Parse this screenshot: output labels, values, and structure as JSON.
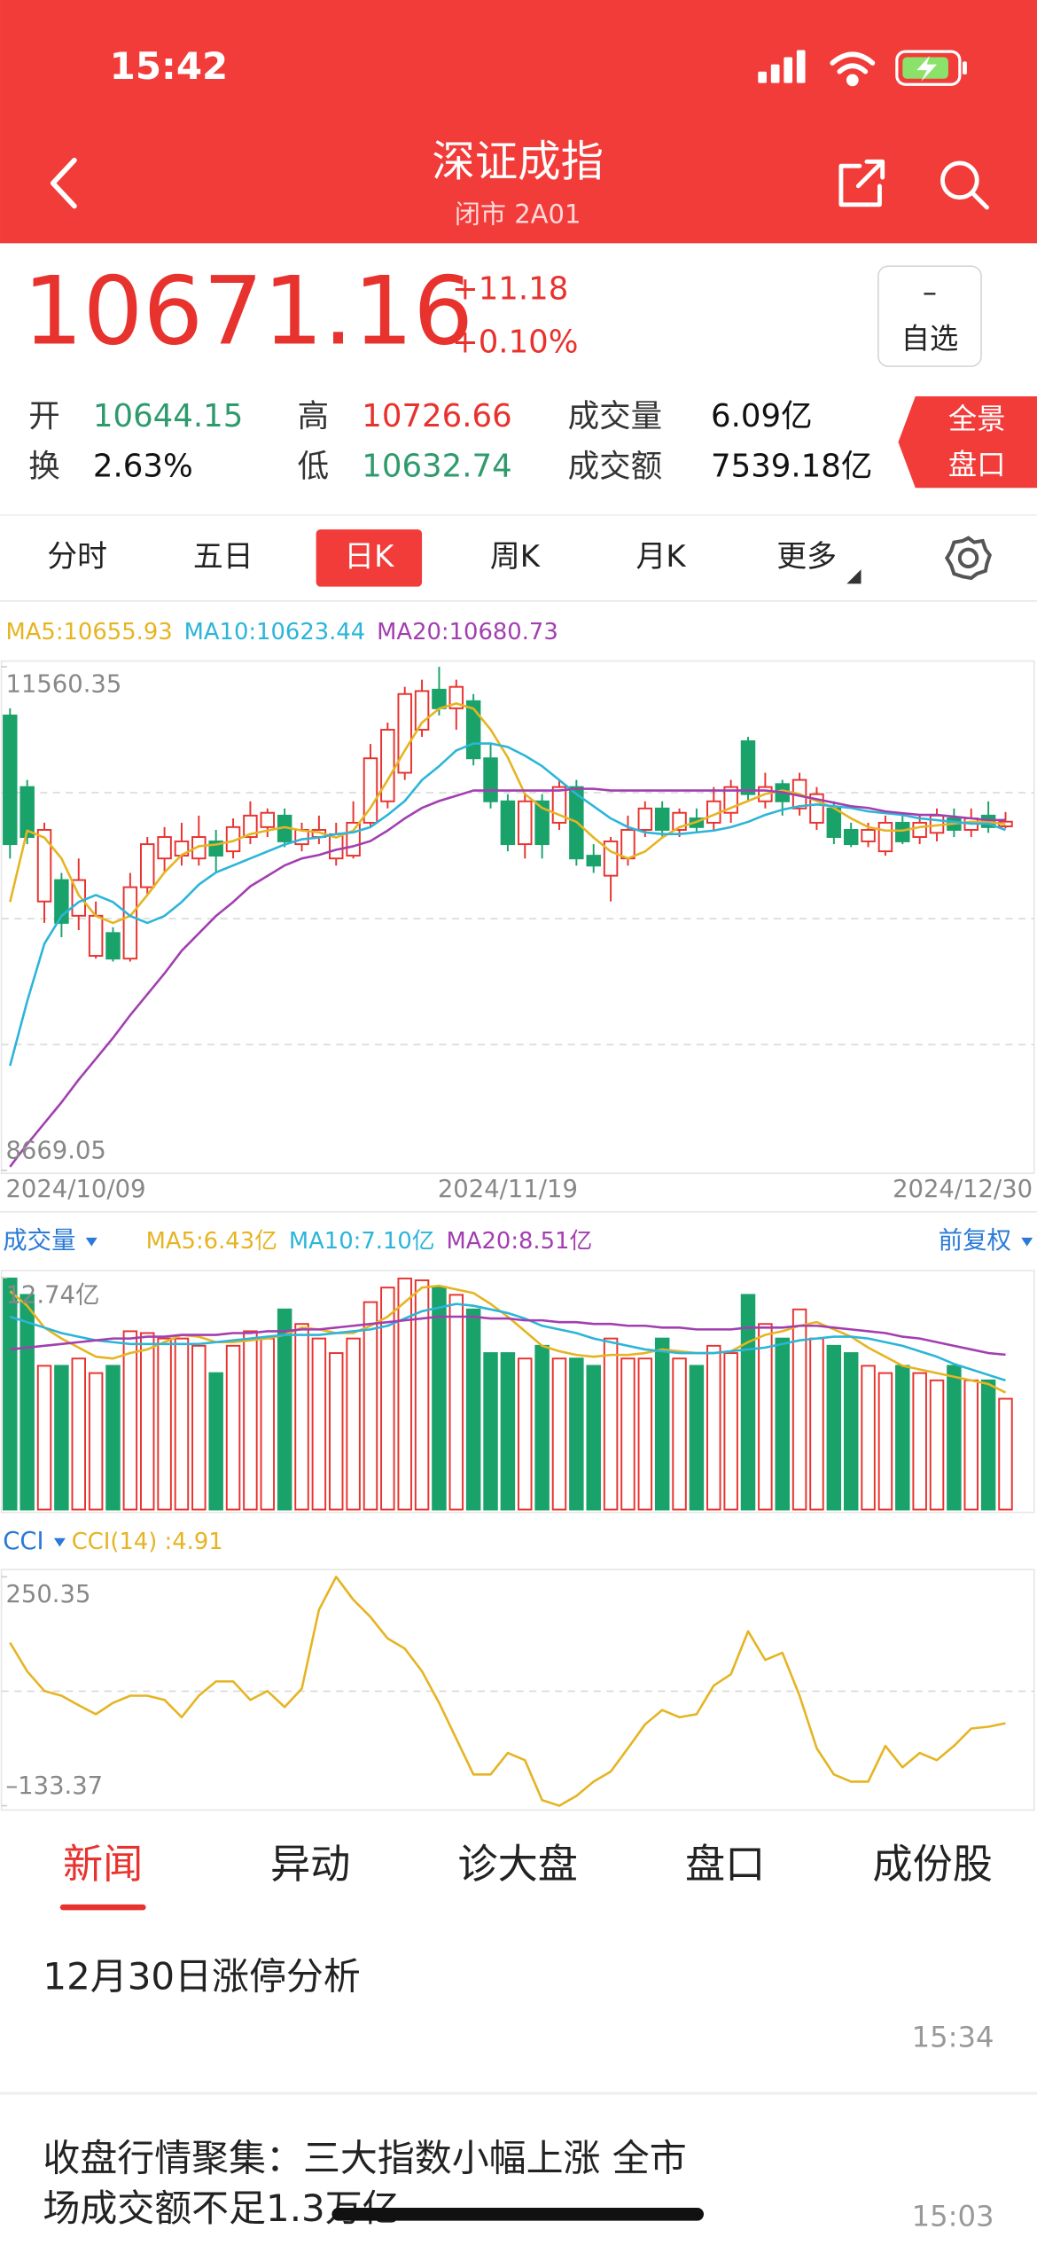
{
  "status_bar": {
    "time": "15:42"
  },
  "header": {
    "title": "深证成指",
    "subtitle": "闭市 2A01"
  },
  "quote": {
    "price": "10671.16",
    "change": "+11.18",
    "change_pct": "+0.10%",
    "watch_icon": "–",
    "watch_button": "自选"
  },
  "stats": [
    {
      "label": "开",
      "value": "10644.15",
      "color": "#2f9b6c"
    },
    {
      "label": "高",
      "value": "10726.66",
      "color": "#e8322e"
    },
    {
      "label": "成交量",
      "value": "6.09亿",
      "color": "#111111"
    },
    {
      "label": "换",
      "value": "2.63%",
      "color": "#111111"
    },
    {
      "label": "低",
      "value": "10632.74",
      "color": "#2f9b6c"
    },
    {
      "label": "成交额",
      "value": "7539.18亿",
      "color": "#111111"
    }
  ],
  "panorama_button": [
    "全景",
    "盘口"
  ],
  "period_tabs": {
    "items": [
      "分时",
      "五日",
      "日K",
      "周K",
      "月K",
      "更多"
    ],
    "active": 2
  },
  "chart_data": [
    {
      "type": "candlestick",
      "up_color": "#e8322e",
      "down_color": "#1aa26b",
      "categories": [
        "2024/10/09",
        null,
        null,
        null,
        null,
        null,
        null,
        null,
        null,
        null,
        null,
        null,
        null,
        null,
        null,
        null,
        null,
        null,
        null,
        null,
        null,
        null,
        null,
        null,
        null,
        null,
        null,
        null,
        null,
        "2024/11/19",
        null,
        null,
        null,
        null,
        null,
        null,
        null,
        null,
        null,
        null,
        null,
        null,
        null,
        null,
        null,
        null,
        null,
        null,
        null,
        null,
        null,
        null,
        null,
        null,
        null,
        null,
        null,
        null,
        "2024/12/30"
      ],
      "open": [
        11281,
        10870,
        10213,
        10336,
        10131,
        9901,
        10032,
        9885,
        10295,
        10460,
        10476,
        10460,
        10558,
        10501,
        10583,
        10640,
        10706,
        10542,
        10583,
        10460,
        10476,
        10665,
        10788,
        10952,
        11199,
        11429,
        11322,
        11363,
        11035,
        10788,
        10542,
        10788,
        10665,
        10870,
        10476,
        10361,
        10460,
        10624,
        10747,
        10624,
        10690,
        10665,
        10722,
        11133,
        10788,
        10887,
        10747,
        10665,
        10747,
        10624,
        10558,
        10501,
        10665,
        10583,
        10607,
        10690,
        10624,
        10706,
        10644.15
      ],
      "close": [
        10542,
        10583,
        10624,
        10090,
        10336,
        10131,
        9885,
        10295,
        10542,
        10583,
        10558,
        10583,
        10476,
        10640,
        10706,
        10722,
        10558,
        10624,
        10624,
        10599,
        10665,
        11035,
        11199,
        11404,
        11421,
        11322,
        11445,
        11035,
        10788,
        10542,
        10788,
        10542,
        10870,
        10460,
        10419,
        10558,
        10624,
        10747,
        10624,
        10722,
        10640,
        10788,
        10870,
        10829,
        10870,
        10788,
        10911,
        10829,
        10583,
        10542,
        10624,
        10665,
        10558,
        10665,
        10706,
        10624,
        10690,
        10640,
        10671.16
      ],
      "high": [
        11322,
        10911,
        10665,
        10377,
        10460,
        10213,
        10065,
        10377,
        10583,
        10640,
        10665,
        10706,
        10624,
        10690,
        10788,
        10747,
        10747,
        10665,
        10706,
        10665,
        10788,
        11117,
        11240,
        11445,
        11486,
        11560.35,
        11486,
        11404,
        11117,
        10829,
        10829,
        10829,
        10911,
        10911,
        10542,
        10583,
        10706,
        10788,
        10788,
        10747,
        10747,
        10870,
        10911,
        11158,
        10952,
        10911,
        10952,
        10870,
        10788,
        10665,
        10665,
        10706,
        10706,
        10706,
        10747,
        10747,
        10747,
        10788,
        10726.66
      ],
      "low": [
        10460,
        10542,
        10090,
        10008,
        10049,
        9885,
        9868,
        9868,
        10254,
        10377,
        10419,
        10419,
        10377,
        10460,
        10542,
        10583,
        10525,
        10501,
        10542,
        10419,
        10460,
        10640,
        10747,
        10911,
        11158,
        11281,
        11199,
        10994,
        10747,
        10501,
        10460,
        10460,
        10624,
        10419,
        10377,
        10213,
        10419,
        10583,
        10583,
        10583,
        10607,
        10624,
        10665,
        10788,
        10747,
        10706,
        10706,
        10624,
        10542,
        10525,
        10525,
        10476,
        10542,
        10542,
        10558,
        10583,
        10583,
        10607,
        10632.74
      ],
      "series": [
        {
          "name": "MA5:10655.93",
          "color": "#e6b422",
          "values": [
            10210,
            10620,
            10580,
            10460,
            10250,
            10130,
            10090,
            10130,
            10250,
            10380,
            10480,
            10530,
            10540,
            10560,
            10600,
            10620,
            10640,
            10620,
            10610,
            10580,
            10620,
            10750,
            10910,
            11080,
            11240,
            11320,
            11350,
            11320,
            11200,
            11040,
            10830,
            10750,
            10710,
            10670,
            10580,
            10500,
            10460,
            10500,
            10580,
            10640,
            10670,
            10710,
            10750,
            10790,
            10830,
            10850,
            10830,
            10790,
            10750,
            10690,
            10640,
            10620,
            10620,
            10640,
            10650,
            10660,
            10670,
            10670,
            10655.93
          ]
        },
        {
          "name": "MA10:10623.44",
          "color": "#2cb5d9",
          "values": [
            9270,
            9640,
            9970,
            10130,
            10210,
            10250,
            10210,
            10130,
            10090,
            10130,
            10210,
            10310,
            10380,
            10420,
            10460,
            10500,
            10540,
            10570,
            10580,
            10600,
            10610,
            10640,
            10710,
            10790,
            10910,
            10990,
            11080,
            11120,
            11120,
            11100,
            11050,
            10990,
            10910,
            10830,
            10760,
            10690,
            10640,
            10610,
            10600,
            10600,
            10610,
            10620,
            10640,
            10670,
            10710,
            10740,
            10760,
            10770,
            10760,
            10750,
            10730,
            10720,
            10710,
            10690,
            10680,
            10670,
            10660,
            10660,
            10623.44
          ]
        },
        {
          "name": "MA20:10680.73",
          "color": "#a23fb0",
          "values": [
            8690,
            8820,
            8940,
            9060,
            9190,
            9310,
            9430,
            9560,
            9680,
            9800,
            9930,
            10030,
            10130,
            10210,
            10300,
            10360,
            10420,
            10460,
            10480,
            10510,
            10530,
            10560,
            10620,
            10690,
            10750,
            10790,
            10820,
            10850,
            10850,
            10850,
            10850,
            10850,
            10850,
            10860,
            10860,
            10850,
            10850,
            10850,
            10850,
            10850,
            10850,
            10850,
            10850,
            10850,
            10850,
            10840,
            10820,
            10800,
            10780,
            10760,
            10750,
            10730,
            10720,
            10710,
            10710,
            10700,
            10690,
            10680,
            10680.73
          ]
        }
      ],
      "ylim": [
        8669.05,
        11560.35
      ],
      "yticks": [
        11560.35,
        8669.05
      ]
    },
    {
      "type": "bar",
      "indicator": "成交量",
      "adjust": "前复权",
      "values": [
        12.7,
        11.8,
        7.9,
        7.9,
        8.3,
        7.5,
        7.9,
        9.8,
        9.7,
        9.4,
        9.4,
        9.0,
        7.5,
        9.0,
        9.8,
        9.4,
        11.0,
        10.2,
        9.4,
        8.6,
        9.4,
        11.4,
        12.2,
        12.7,
        12.6,
        12.2,
        11.8,
        11.0,
        8.6,
        8.6,
        8.3,
        9.0,
        8.3,
        8.3,
        7.9,
        9.4,
        8.3,
        8.3,
        9.4,
        8.3,
        7.9,
        9.0,
        8.6,
        11.8,
        10.2,
        9.4,
        11.0,
        9.4,
        9.0,
        8.6,
        7.9,
        7.5,
        7.9,
        7.5,
        7.1,
        7.9,
        7.1,
        7.1,
        6.09
      ],
      "series": [
        {
          "name": "MA5:6.43亿",
          "color": "#e6b422",
          "values": [
            12.0,
            11.2,
            10.0,
            9.4,
            8.9,
            8.4,
            8.3,
            8.6,
            8.8,
            9.2,
            9.6,
            9.5,
            9.2,
            9.2,
            9.3,
            9.4,
            9.6,
            10.0,
            9.9,
            9.7,
            9.7,
            10.1,
            10.6,
            11.4,
            12.2,
            12.3,
            12.1,
            11.9,
            11.3,
            10.6,
            9.8,
            9.0,
            8.7,
            8.5,
            8.4,
            8.5,
            8.5,
            8.6,
            8.8,
            8.7,
            8.6,
            8.6,
            8.7,
            9.2,
            9.6,
            9.8,
            10.1,
            10.3,
            9.9,
            9.5,
            8.9,
            8.4,
            7.9,
            7.7,
            7.5,
            7.3,
            7.1,
            6.9,
            6.43
          ]
        },
        {
          "name": "MA10:7.10亿",
          "color": "#2cb5d9",
          "values": [
            10.6,
            10.3,
            10.0,
            9.7,
            9.5,
            9.3,
            9.2,
            9.1,
            9.1,
            9.1,
            9.1,
            9.1,
            9.2,
            9.3,
            9.4,
            9.5,
            9.6,
            9.6,
            9.6,
            9.7,
            9.8,
            9.9,
            10.1,
            10.5,
            10.9,
            11.1,
            11.3,
            11.2,
            11.0,
            10.8,
            10.5,
            10.1,
            9.9,
            9.7,
            9.4,
            9.2,
            9.0,
            8.8,
            8.7,
            8.6,
            8.6,
            8.6,
            8.7,
            8.8,
            8.9,
            9.1,
            9.3,
            9.4,
            9.5,
            9.5,
            9.4,
            9.2,
            9.0,
            8.7,
            8.4,
            8.0,
            7.7,
            7.4,
            7.1
          ]
        },
        {
          "name": "MA20:8.51亿",
          "color": "#a23fb0",
          "values": [
            8.8,
            8.9,
            9.0,
            9.1,
            9.2,
            9.3,
            9.4,
            9.4,
            9.5,
            9.5,
            9.6,
            9.6,
            9.6,
            9.7,
            9.7,
            9.8,
            9.8,
            9.9,
            9.9,
            10.0,
            10.1,
            10.2,
            10.3,
            10.4,
            10.5,
            10.6,
            10.6,
            10.6,
            10.5,
            10.5,
            10.4,
            10.4,
            10.3,
            10.3,
            10.2,
            10.2,
            10.1,
            10.1,
            10.0,
            10.0,
            9.9,
            9.9,
            9.9,
            10.0,
            10.0,
            10.0,
            10.1,
            10.1,
            10.0,
            9.9,
            9.8,
            9.7,
            9.5,
            9.4,
            9.2,
            9.0,
            8.8,
            8.6,
            8.51
          ]
        }
      ],
      "ylim": [
        0,
        12.74
      ],
      "yticks": [
        {
          "value": 12.74,
          "label": "12.74亿"
        }
      ]
    },
    {
      "type": "line",
      "indicator": "CCI",
      "series": [
        {
          "name": "CCI(14) :4.91",
          "color": "#e6b422",
          "values": [
            140,
            92,
            59,
            51,
            35,
            20,
            39,
            51,
            51,
            44,
            15,
            51,
            75,
            75,
            44,
            59,
            32,
            63,
            195,
            250.35,
            212,
            183,
            147,
            130,
            92,
            39,
            -21,
            -81,
            -81,
            -45,
            -57,
            -124,
            -133.37,
            -117,
            -93,
            -76,
            -37,
            3,
            27,
            15,
            20,
            68,
            87,
            159,
            111,
            123,
            51,
            -37,
            -81,
            -93,
            -93,
            -33,
            -69,
            -45,
            -57,
            -33,
            -4,
            -1,
            4.91
          ]
        }
      ],
      "ylim": [
        -133.37,
        250.35
      ],
      "yticks": [
        250.35,
        {
          "value": -133.37,
          "label": "–133.37"
        }
      ]
    }
  ],
  "news_tabs": {
    "items": [
      "新闻",
      "异动",
      "诊大盘",
      "盘口",
      "成份股"
    ],
    "active": 0
  },
  "news": [
    {
      "title": [
        "12月30日涨停分析"
      ],
      "time": "15:34"
    },
    {
      "title": [
        "收盘行情聚集：三大指数小幅上涨 全市",
        "场成交额不足1.3万亿"
      ],
      "time": "15:03"
    }
  ]
}
